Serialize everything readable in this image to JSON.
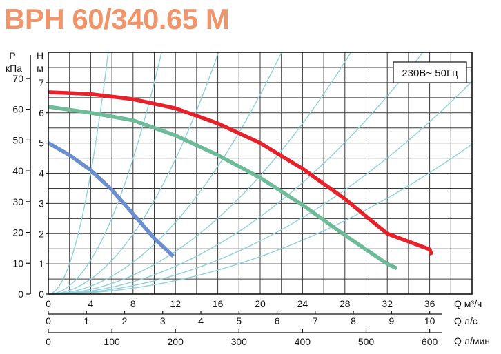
{
  "colors": {
    "title": "#F0956A",
    "grid": "#3a3a3a",
    "system_curves": "#8fd0dc",
    "series": [
      "#E8202A",
      "#6DBB98",
      "#6B8ECF"
    ]
  },
  "chart_data": {
    "type": "line",
    "title": "BPH 60/340.65 M",
    "annotation": "230B~ 50Гц",
    "x_axis": {
      "label_main": "Q м³/ч",
      "range": [
        0,
        40
      ],
      "ticks": [
        "0",
        "4",
        "8",
        "12",
        "16",
        "20",
        "24",
        "28",
        "32",
        "36"
      ],
      "grid": true
    },
    "x_axis_secondary": [
      {
        "unit": "Q л/с",
        "ticks": [
          "0",
          "1",
          "2",
          "3",
          "4",
          "5",
          "6",
          "7",
          "8",
          "9",
          "10"
        ]
      },
      {
        "unit": "Q л/мин",
        "ticks": [
          "0",
          "100",
          "200",
          "300",
          "400",
          "500",
          "600"
        ]
      }
    ],
    "y_axis_head": {
      "label": "H",
      "unit": "м",
      "range": [
        0,
        8
      ],
      "ticks": [
        "0",
        "1",
        "2",
        "3",
        "4",
        "5",
        "6",
        "7"
      ]
    },
    "y_axis_pressure": {
      "label": "P",
      "unit": "кПа",
      "ticks": [
        "0",
        "10",
        "20",
        "30",
        "40",
        "50",
        "60",
        "70"
      ]
    },
    "series": [
      {
        "x": [
          0,
          4,
          8,
          12,
          16,
          20,
          24,
          28,
          32,
          36,
          36.2
        ],
        "y": [
          6.68,
          6.62,
          6.45,
          6.15,
          5.65,
          5.0,
          4.15,
          3.15,
          2.0,
          1.48,
          1.3
        ]
      },
      {
        "x": [
          0,
          4,
          8,
          12,
          16,
          20,
          24,
          28,
          32,
          32.9
        ],
        "y": [
          6.2,
          6.0,
          5.75,
          5.25,
          4.6,
          3.85,
          2.95,
          1.95,
          1.0,
          0.85
        ]
      },
      {
        "x": [
          0,
          2,
          4,
          6,
          8,
          10,
          11.8
        ],
        "y": [
          5.0,
          4.6,
          4.1,
          3.45,
          2.65,
          1.85,
          1.25
        ]
      }
    ],
    "system_curve_coefficients": [
      0.25,
      0.07,
      0.031,
      0.0165,
      0.0098,
      0.0064,
      0.0044,
      0.0031
    ]
  }
}
